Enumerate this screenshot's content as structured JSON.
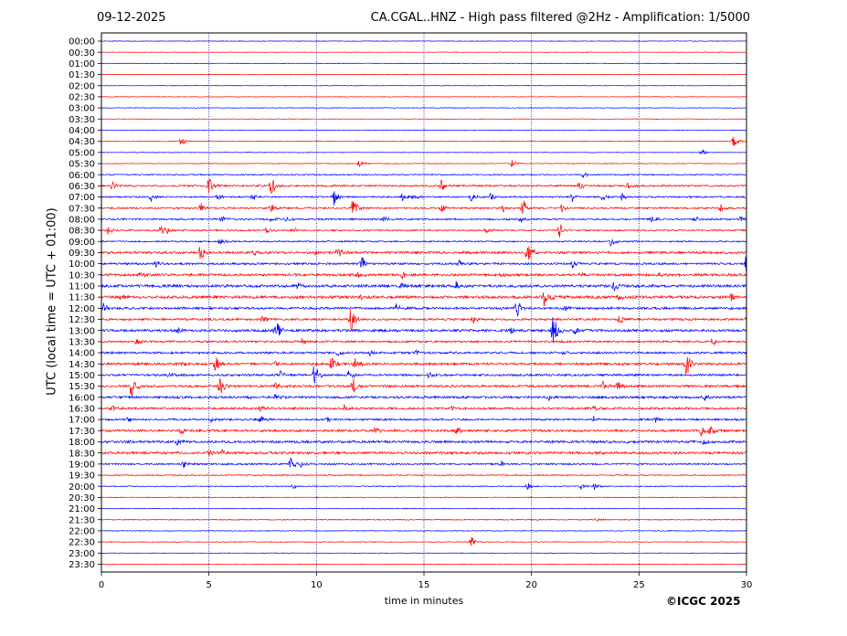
{
  "header": {
    "date": "09-12-2025",
    "title": "CA.CGAL..HNZ - High pass filtered @2Hz - Amplification: 1/5000"
  },
  "footer": {
    "copyright": "©ICGC 2025"
  },
  "chart_data": {
    "type": "line",
    "title": "CA.CGAL..HNZ - High pass filtered @2Hz - Amplification: 1/5000",
    "xlabel": "time in minutes",
    "ylabel": "UTC (local time = UTC + 01:00)",
    "xlim": [
      0,
      30
    ],
    "xticks": [
      0,
      5,
      10,
      15,
      20,
      25,
      30
    ],
    "grid": "vertical dotted at 5-minute ticks",
    "row_labels": [
      "00:00",
      "00:30",
      "01:00",
      "01:30",
      "02:00",
      "02:30",
      "03:00",
      "03:30",
      "04:00",
      "04:30",
      "05:00",
      "05:30",
      "06:00",
      "06:30",
      "07:00",
      "07:30",
      "08:00",
      "08:30",
      "09:00",
      "09:30",
      "10:00",
      "10:30",
      "11:00",
      "11:30",
      "12:00",
      "12:30",
      "13:00",
      "13:30",
      "14:00",
      "14:30",
      "15:00",
      "15:30",
      "16:00",
      "16:30",
      "17:00",
      "17:30",
      "18:00",
      "18:30",
      "19:00",
      "19:30",
      "20:00",
      "20:30",
      "21:00",
      "21:30",
      "22:00",
      "22:30",
      "23:00",
      "23:30"
    ],
    "trace_colors": [
      "#0000ff",
      "#ff0000"
    ],
    "trace_color_order": "alternating by row",
    "noise_level": [
      0.3,
      0.3,
      0.3,
      0.3,
      0.3,
      0.3,
      0.3,
      0.3,
      0.3,
      0.3,
      0.3,
      0.3,
      0.6,
      0.9,
      0.8,
      0.9,
      0.9,
      0.8,
      0.8,
      1.2,
      1.1,
      1.3,
      1.4,
      1.5,
      1.2,
      1.1,
      1.3,
      1.0,
      1.1,
      1.2,
      1.1,
      1.2,
      1.2,
      1.1,
      1.0,
      1.2,
      1.3,
      1.3,
      0.9,
      0.6,
      0.5,
      0.4,
      0.4,
      0.5,
      0.4,
      0.4,
      0.3,
      0.3
    ],
    "events": [
      {
        "row": 9,
        "t": 3.7,
        "amp": 5
      },
      {
        "row": 9,
        "t": 29.4,
        "amp": 7
      },
      {
        "row": 10,
        "t": 27.9,
        "amp": 4
      },
      {
        "row": 11,
        "t": 12.0,
        "amp": 5
      },
      {
        "row": 11,
        "t": 19.1,
        "amp": 5
      },
      {
        "row": 12,
        "t": 22.4,
        "amp": 4
      },
      {
        "row": 13,
        "t": 0.5,
        "amp": 8
      },
      {
        "row": 13,
        "t": 5.0,
        "amp": 12
      },
      {
        "row": 13,
        "t": 7.9,
        "amp": 14
      },
      {
        "row": 13,
        "t": 15.8,
        "amp": 7
      },
      {
        "row": 13,
        "t": 22.2,
        "amp": 5
      },
      {
        "row": 13,
        "t": 24.5,
        "amp": 5
      },
      {
        "row": 14,
        "t": 2.3,
        "amp": 5
      },
      {
        "row": 14,
        "t": 5.4,
        "amp": 5
      },
      {
        "row": 14,
        "t": 7.0,
        "amp": 5
      },
      {
        "row": 14,
        "t": 10.8,
        "amp": 12
      },
      {
        "row": 14,
        "t": 14.0,
        "amp": 5
      },
      {
        "row": 14,
        "t": 14.5,
        "amp": 4
      },
      {
        "row": 14,
        "t": 17.2,
        "amp": 5
      },
      {
        "row": 14,
        "t": 18.1,
        "amp": 5
      },
      {
        "row": 14,
        "t": 21.9,
        "amp": 5
      },
      {
        "row": 14,
        "t": 23.3,
        "amp": 5
      },
      {
        "row": 14,
        "t": 24.2,
        "amp": 4
      },
      {
        "row": 15,
        "t": 4.6,
        "amp": 6
      },
      {
        "row": 15,
        "t": 7.9,
        "amp": 5
      },
      {
        "row": 15,
        "t": 11.7,
        "amp": 14
      },
      {
        "row": 15,
        "t": 15.8,
        "amp": 5
      },
      {
        "row": 15,
        "t": 18.7,
        "amp": 5
      },
      {
        "row": 15,
        "t": 19.6,
        "amp": 10
      },
      {
        "row": 15,
        "t": 21.4,
        "amp": 5
      },
      {
        "row": 15,
        "t": 28.8,
        "amp": 5
      },
      {
        "row": 16,
        "t": 5.6,
        "amp": 4
      },
      {
        "row": 16,
        "t": 7.9,
        "amp": 4
      },
      {
        "row": 16,
        "t": 8.6,
        "amp": 4
      },
      {
        "row": 16,
        "t": 13.1,
        "amp": 4
      },
      {
        "row": 16,
        "t": 19.5,
        "amp": 5
      },
      {
        "row": 16,
        "t": 25.6,
        "amp": 5
      },
      {
        "row": 16,
        "t": 27.6,
        "amp": 5
      },
      {
        "row": 16,
        "t": 29.7,
        "amp": 4
      },
      {
        "row": 17,
        "t": 0.3,
        "amp": 5
      },
      {
        "row": 17,
        "t": 2.7,
        "amp": 6
      },
      {
        "row": 17,
        "t": 3.0,
        "amp": 5
      },
      {
        "row": 17,
        "t": 7.7,
        "amp": 5
      },
      {
        "row": 17,
        "t": 8.9,
        "amp": 4
      },
      {
        "row": 17,
        "t": 17.9,
        "amp": 4
      },
      {
        "row": 17,
        "t": 21.3,
        "amp": 8
      },
      {
        "row": 18,
        "t": 5.5,
        "amp": 4
      },
      {
        "row": 18,
        "t": 23.7,
        "amp": 6
      },
      {
        "row": 19,
        "t": 4.6,
        "amp": 10
      },
      {
        "row": 19,
        "t": 7.1,
        "amp": 4
      },
      {
        "row": 19,
        "t": 9.9,
        "amp": 4
      },
      {
        "row": 19,
        "t": 11.0,
        "amp": 7
      },
      {
        "row": 19,
        "t": 19.8,
        "amp": 14
      },
      {
        "row": 20,
        "t": 2.5,
        "amp": 5
      },
      {
        "row": 20,
        "t": 12.1,
        "amp": 9
      },
      {
        "row": 20,
        "t": 16.6,
        "amp": 5
      },
      {
        "row": 20,
        "t": 21.9,
        "amp": 5
      },
      {
        "row": 20,
        "t": 30.0,
        "amp": 18
      },
      {
        "row": 21,
        "t": 1.8,
        "amp": 4
      },
      {
        "row": 21,
        "t": 11.9,
        "amp": 4
      },
      {
        "row": 21,
        "t": 14.0,
        "amp": 5
      },
      {
        "row": 21,
        "t": 18.5,
        "amp": 4
      },
      {
        "row": 21,
        "t": 22.3,
        "amp": 4
      },
      {
        "row": 21,
        "t": 25.9,
        "amp": 4
      },
      {
        "row": 22,
        "t": 9.1,
        "amp": 5
      },
      {
        "row": 22,
        "t": 13.9,
        "amp": 4
      },
      {
        "row": 22,
        "t": 16.5,
        "amp": 5
      },
      {
        "row": 22,
        "t": 23.8,
        "amp": 8
      },
      {
        "row": 23,
        "t": 0.9,
        "amp": 4
      },
      {
        "row": 23,
        "t": 12.0,
        "amp": 5
      },
      {
        "row": 23,
        "t": 20.6,
        "amp": 14
      },
      {
        "row": 23,
        "t": 24.0,
        "amp": 5
      },
      {
        "row": 23,
        "t": 29.3,
        "amp": 5
      },
      {
        "row": 24,
        "t": 0.1,
        "amp": 5
      },
      {
        "row": 24,
        "t": 13.7,
        "amp": 5
      },
      {
        "row": 24,
        "t": 19.3,
        "amp": 12
      },
      {
        "row": 24,
        "t": 21.5,
        "amp": 5
      },
      {
        "row": 25,
        "t": 7.5,
        "amp": 5
      },
      {
        "row": 25,
        "t": 11.6,
        "amp": 16
      },
      {
        "row": 25,
        "t": 17.3,
        "amp": 5
      },
      {
        "row": 25,
        "t": 24.1,
        "amp": 6
      },
      {
        "row": 25,
        "t": 30.0,
        "amp": 5
      },
      {
        "row": 26,
        "t": 3.5,
        "amp": 5
      },
      {
        "row": 26,
        "t": 8.1,
        "amp": 18
      },
      {
        "row": 26,
        "t": 19.0,
        "amp": 6
      },
      {
        "row": 26,
        "t": 21.0,
        "amp": 20
      },
      {
        "row": 26,
        "t": 22.0,
        "amp": 6
      },
      {
        "row": 27,
        "t": 1.6,
        "amp": 5
      },
      {
        "row": 27,
        "t": 9.3,
        "amp": 4
      },
      {
        "row": 27,
        "t": 28.4,
        "amp": 5
      },
      {
        "row": 28,
        "t": 11.0,
        "amp": 4
      },
      {
        "row": 28,
        "t": 12.5,
        "amp": 4
      },
      {
        "row": 28,
        "t": 14.6,
        "amp": 4
      },
      {
        "row": 28,
        "t": 21.5,
        "amp": 4
      },
      {
        "row": 29,
        "t": 3.8,
        "amp": 3
      },
      {
        "row": 29,
        "t": 5.3,
        "amp": 10
      },
      {
        "row": 29,
        "t": 8.1,
        "amp": 4
      },
      {
        "row": 29,
        "t": 10.7,
        "amp": 8
      },
      {
        "row": 29,
        "t": 11.8,
        "amp": 10
      },
      {
        "row": 29,
        "t": 27.2,
        "amp": 16
      },
      {
        "row": 30,
        "t": 3.1,
        "amp": 4
      },
      {
        "row": 30,
        "t": 8.3,
        "amp": 5
      },
      {
        "row": 30,
        "t": 9.9,
        "amp": 12
      },
      {
        "row": 30,
        "t": 11.5,
        "amp": 5
      },
      {
        "row": 30,
        "t": 15.2,
        "amp": 4
      },
      {
        "row": 31,
        "t": 1.4,
        "amp": 16
      },
      {
        "row": 31,
        "t": 5.5,
        "amp": 12
      },
      {
        "row": 31,
        "t": 8.1,
        "amp": 5
      },
      {
        "row": 31,
        "t": 11.7,
        "amp": 12
      },
      {
        "row": 31,
        "t": 23.3,
        "amp": 7
      },
      {
        "row": 31,
        "t": 24.0,
        "amp": 6
      },
      {
        "row": 32,
        "t": 6.8,
        "amp": 4
      },
      {
        "row": 32,
        "t": 8.1,
        "amp": 5
      },
      {
        "row": 32,
        "t": 20.8,
        "amp": 4
      },
      {
        "row": 32,
        "t": 28.0,
        "amp": 5
      },
      {
        "row": 33,
        "t": 0.5,
        "amp": 4
      },
      {
        "row": 33,
        "t": 7.4,
        "amp": 4
      },
      {
        "row": 33,
        "t": 11.3,
        "amp": 5
      },
      {
        "row": 33,
        "t": 16.3,
        "amp": 4
      },
      {
        "row": 33,
        "t": 22.9,
        "amp": 4
      },
      {
        "row": 34,
        "t": 1.2,
        "amp": 4
      },
      {
        "row": 34,
        "t": 5.1,
        "amp": 4
      },
      {
        "row": 34,
        "t": 7.4,
        "amp": 5
      },
      {
        "row": 34,
        "t": 10.5,
        "amp": 4
      },
      {
        "row": 34,
        "t": 22.9,
        "amp": 4
      },
      {
        "row": 34,
        "t": 25.8,
        "amp": 4
      },
      {
        "row": 35,
        "t": 3.7,
        "amp": 5
      },
      {
        "row": 35,
        "t": 12.7,
        "amp": 5
      },
      {
        "row": 35,
        "t": 16.5,
        "amp": 5
      },
      {
        "row": 35,
        "t": 27.9,
        "amp": 7
      },
      {
        "row": 35,
        "t": 28.3,
        "amp": 6
      },
      {
        "row": 36,
        "t": 3.5,
        "amp": 4
      },
      {
        "row": 36,
        "t": 28.0,
        "amp": 6
      },
      {
        "row": 37,
        "t": 5.0,
        "amp": 3
      },
      {
        "row": 37,
        "t": 5.6,
        "amp": 3
      },
      {
        "row": 38,
        "t": 3.8,
        "amp": 5
      },
      {
        "row": 38,
        "t": 8.8,
        "amp": 7
      },
      {
        "row": 38,
        "t": 9.3,
        "amp": 4
      },
      {
        "row": 38,
        "t": 18.6,
        "amp": 4
      },
      {
        "row": 40,
        "t": 8.9,
        "amp": 5
      },
      {
        "row": 40,
        "t": 19.8,
        "amp": 5
      },
      {
        "row": 40,
        "t": 22.3,
        "amp": 4
      },
      {
        "row": 40,
        "t": 22.9,
        "amp": 4
      },
      {
        "row": 43,
        "t": 23.0,
        "amp": 2
      },
      {
        "row": 45,
        "t": 17.2,
        "amp": 6
      }
    ]
  }
}
